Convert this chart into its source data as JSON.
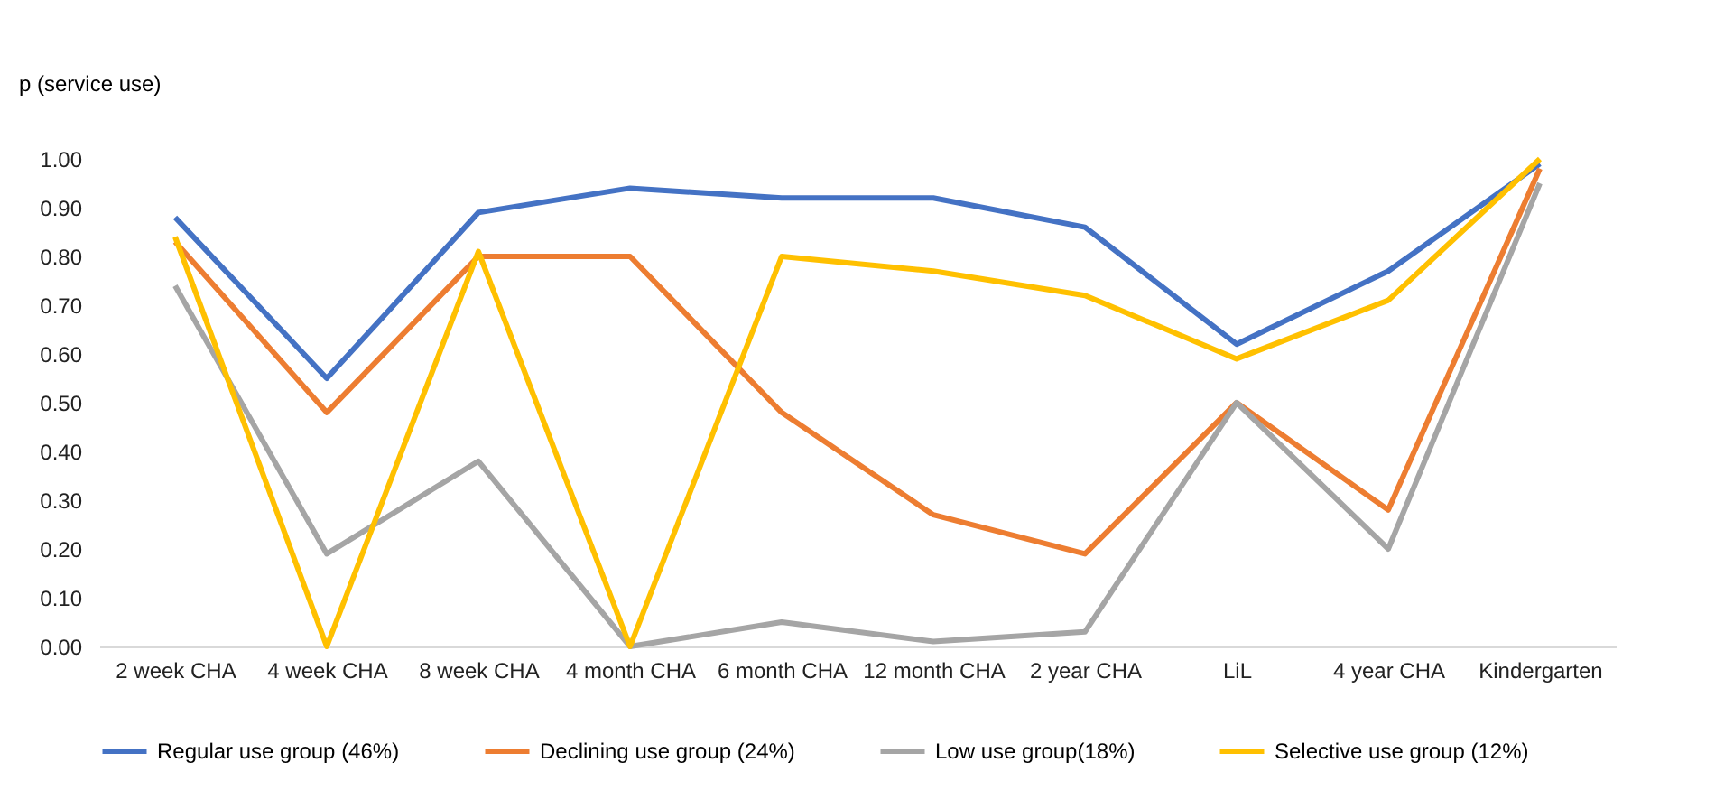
{
  "chart_data": {
    "type": "line",
    "ylabel": "p (service use)",
    "categories": [
      "2 week CHA",
      "4 week CHA",
      "8 week CHA",
      "4 month CHA",
      "6 month CHA",
      "12 month CHA",
      "2 year CHA",
      "LiL",
      "4 year CHA",
      "Kindergarten"
    ],
    "series": [
      {
        "name": "Regular use group (46%)",
        "color": "#4472c4",
        "values": [
          0.88,
          0.55,
          0.89,
          0.94,
          0.92,
          0.92,
          0.86,
          0.62,
          0.77,
          0.99
        ]
      },
      {
        "name": "Declining use group (24%)",
        "color": "#ed7d31",
        "values": [
          0.83,
          0.48,
          0.8,
          0.8,
          0.48,
          0.27,
          0.19,
          0.5,
          0.28,
          0.98
        ]
      },
      {
        "name": "Low use group(18%)",
        "color": "#a5a5a5",
        "values": [
          0.74,
          0.19,
          0.38,
          0.0,
          0.05,
          0.01,
          0.03,
          0.5,
          0.2,
          0.95
        ]
      },
      {
        "name": "Selective use group (12%)",
        "color": "#ffc000",
        "values": [
          0.84,
          0.0,
          0.81,
          0.0,
          0.8,
          0.77,
          0.72,
          0.59,
          0.71,
          1.0
        ]
      }
    ],
    "ylim": [
      0,
      1
    ],
    "yticks": [
      {
        "value": 0,
        "label": "0.00"
      },
      {
        "value": 0.1,
        "label": "0.10"
      },
      {
        "value": 0.2,
        "label": "0.20"
      },
      {
        "value": 0.3,
        "label": "0.30"
      },
      {
        "value": 0.4,
        "label": "0.40"
      },
      {
        "value": 0.5,
        "label": "0.50"
      },
      {
        "value": 0.6,
        "label": "0.60"
      },
      {
        "value": 0.7,
        "label": "0.70"
      },
      {
        "value": 0.8,
        "label": "0.80"
      },
      {
        "value": 0.9,
        "label": "0.90"
      },
      {
        "value": 1,
        "label": "1.00"
      }
    ],
    "grid": false,
    "legend": "bottom",
    "marker": "none",
    "line_style": "solid"
  }
}
